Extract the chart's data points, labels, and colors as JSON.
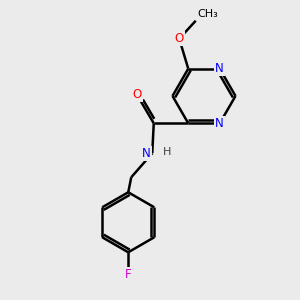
{
  "background_color": "#ebebeb",
  "bond_color": "#000000",
  "nitrogen_color": "#0000ff",
  "oxygen_color": "#ff0000",
  "fluorine_color": "#cc00cc",
  "h_color": "#404040",
  "line_width": 1.8,
  "figsize": [
    3.0,
    3.0
  ],
  "dpi": 100,
  "xlim": [
    0,
    10
  ],
  "ylim": [
    0,
    10
  ]
}
